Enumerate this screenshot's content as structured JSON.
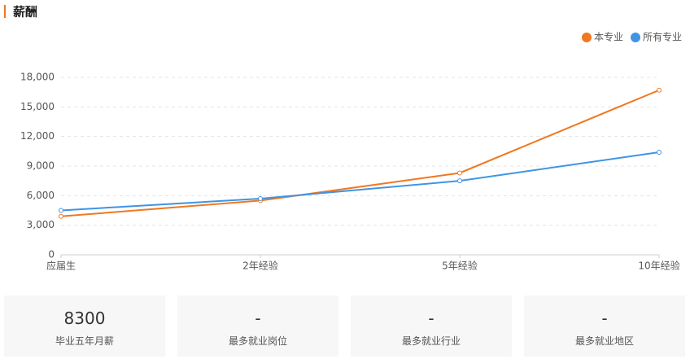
{
  "chart_data": {
    "type": "line",
    "title": "薪酬",
    "categories": [
      "应届生",
      "2年经验",
      "5年经验",
      "10年经验"
    ],
    "series": [
      {
        "name": "本专业",
        "color": "#f07820",
        "values": [
          3900,
          5500,
          8300,
          16700
        ]
      },
      {
        "name": "所有专业",
        "color": "#3f94e4",
        "values": [
          4500,
          5700,
          7500,
          10400
        ]
      }
    ],
    "ylim": [
      0,
      18000
    ],
    "yticks": [
      0,
      {
        "value": 3000,
        "label": "3,000"
      },
      {
        "value": 6000,
        "label": "6,000"
      },
      {
        "value": 9000,
        "label": "9,000"
      },
      {
        "value": 12000,
        "label": "12,000"
      },
      {
        "value": 15000,
        "label": "15,000"
      },
      {
        "value": 18000,
        "label": "18,000"
      }
    ],
    "grid": true,
    "legend": "top-right"
  },
  "stats": [
    {
      "value": "8300",
      "label": "毕业五年月薪"
    },
    {
      "value": "-",
      "label": "最多就业岗位"
    },
    {
      "value": "-",
      "label": "最多就业行业"
    },
    {
      "value": "-",
      "label": "最多就业地区"
    }
  ]
}
